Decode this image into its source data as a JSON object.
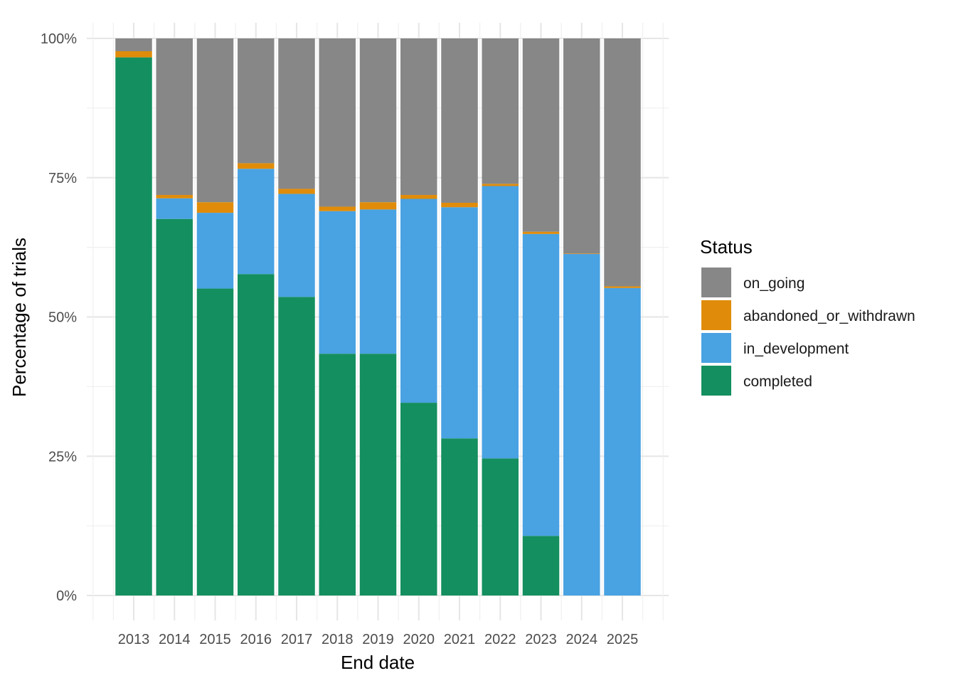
{
  "chart_data": {
    "type": "bar",
    "stacked": true,
    "stack_mode": "percent",
    "xlabel": "End date",
    "ylabel": "Percentage of trials",
    "ylim": [
      0,
      100
    ],
    "y_ticks": [
      "0%",
      "25%",
      "50%",
      "75%",
      "100%"
    ],
    "y_tick_values": [
      0,
      25,
      50,
      75,
      100
    ],
    "grid": true,
    "legend_position": "right",
    "legend_title": "Status",
    "categories": [
      "2013",
      "2014",
      "2015",
      "2016",
      "2017",
      "2018",
      "2019",
      "2020",
      "2021",
      "2022",
      "2023",
      "2024",
      "2025"
    ],
    "series": [
      {
        "name": "completed",
        "color": "#148F5F",
        "values": [
          96.6,
          67.6,
          55.1,
          57.7,
          53.6,
          43.4,
          43.4,
          34.6,
          28.2,
          24.6,
          10.7,
          0.0,
          0.0
        ]
      },
      {
        "name": "in_development",
        "color": "#49A2E2",
        "values": [
          0.0,
          3.7,
          13.6,
          18.9,
          18.5,
          25.6,
          25.9,
          36.6,
          41.5,
          48.9,
          54.2,
          61.3,
          55.2
        ]
      },
      {
        "name": "abandoned_or_withdrawn",
        "color": "#E08C0A",
        "values": [
          1.1,
          0.6,
          1.9,
          1.0,
          0.9,
          0.8,
          1.3,
          0.7,
          0.8,
          0.4,
          0.4,
          0.1,
          0.3
        ]
      },
      {
        "name": "on_going",
        "color": "#878787",
        "values": [
          2.3,
          28.1,
          29.4,
          22.4,
          27.0,
          30.2,
          29.4,
          28.1,
          29.5,
          26.1,
          34.7,
          38.6,
          44.5
        ]
      }
    ],
    "legend_order": [
      "on_going",
      "abandoned_or_withdrawn",
      "in_development",
      "completed"
    ]
  }
}
